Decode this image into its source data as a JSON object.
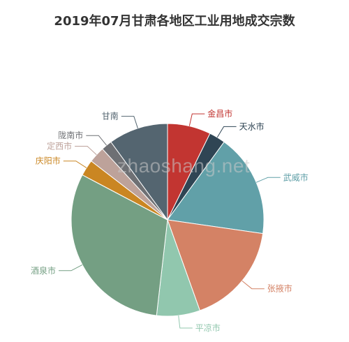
{
  "chart_data": {
    "type": "pie",
    "title": "2019年07月甘肃各地区工业用地成交宗数",
    "slices": [
      {
        "name": "金昌市",
        "value": 8,
        "color": "#c23531"
      },
      {
        "name": "天水市",
        "value": 3,
        "color": "#2f4554"
      },
      {
        "name": "武威市",
        "value": 19,
        "color": "#61a0a8"
      },
      {
        "name": "张掖市",
        "value": 19,
        "color": "#d48265"
      },
      {
        "name": "平凉市",
        "value": 8,
        "color": "#91c7ae"
      },
      {
        "name": "酒泉市",
        "value": 34,
        "color": "#749f83"
      },
      {
        "name": "庆阳市",
        "value": 3,
        "color": "#ca8622"
      },
      {
        "name": "定西市",
        "value": 3,
        "color": "#bda29a"
      },
      {
        "name": "陇南市",
        "value": 2,
        "color": "#6e7074"
      },
      {
        "name": "甘南",
        "value": 11,
        "color": "#546570"
      }
    ]
  },
  "watermark": "zhaoshang.net"
}
